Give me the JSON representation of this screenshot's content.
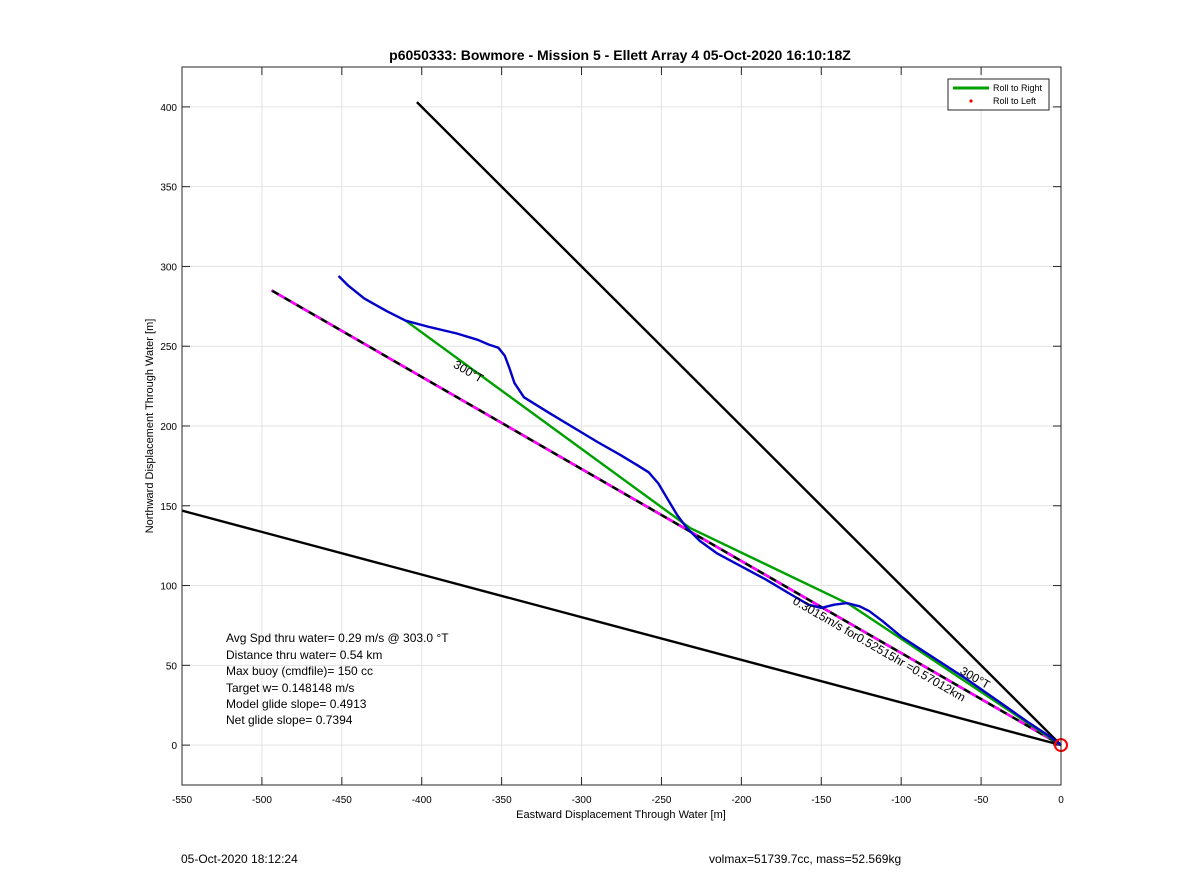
{
  "chart_data": {
    "type": "line",
    "title": "p6050333: Bowmore - Mission 5 - Ellett Array 4 05-Oct-2020 16:10:18Z",
    "xlabel": "Eastward Displacement Through Water [m]",
    "ylabel": "Northward Displacement Through Water [m]",
    "xlim": [
      -550,
      0
    ],
    "ylim": [
      -25,
      425
    ],
    "xticks": [
      -550,
      -500,
      -450,
      -400,
      -350,
      -300,
      -250,
      -200,
      -150,
      -100,
      -50,
      0
    ],
    "yticks": [
      0,
      50,
      100,
      150,
      200,
      250,
      300,
      350,
      400
    ],
    "grid": true,
    "legend_position": "top-right",
    "legend": [
      {
        "label": "Roll to Right",
        "color": "#00a000",
        "style": "line"
      },
      {
        "label": "Roll to Left",
        "color": "#ff0000",
        "style": "dot"
      }
    ],
    "series": [
      {
        "name": "Roll to Right",
        "color": "#00a000",
        "x": [
          0,
          -132,
          -232,
          -410
        ],
        "y": [
          0,
          88,
          136,
          266
        ]
      },
      {
        "color": "#0000c8",
        "x": [
          0,
          -8,
          -20,
          -40,
          -60,
          -80,
          -100,
          -112,
          -120,
          -126,
          -134,
          -142,
          -150,
          -158,
          -170,
          -185,
          -200,
          -215,
          -226,
          -234,
          -240,
          -246,
          -252,
          -258,
          -266,
          -276,
          -290,
          -305,
          -320,
          -336,
          -342,
          -345,
          -348,
          -352,
          -358,
          -365,
          -378,
          -395,
          -410,
          -422,
          -436,
          -446,
          -452
        ],
        "y": [
          0,
          6,
          14,
          28,
          42,
          55,
          68,
          78,
          84,
          87,
          89,
          88,
          86,
          88,
          95,
          104,
          112,
          120,
          128,
          136,
          144,
          154,
          164,
          171,
          176,
          182,
          190,
          199,
          208,
          218,
          227,
          236,
          244,
          249,
          251,
          254,
          258,
          262,
          266,
          272,
          280,
          288,
          294
        ]
      },
      {
        "color": "#000000",
        "style": "dashed-magenta",
        "x": [
          0,
          -494
        ],
        "y": [
          0,
          285
        ]
      },
      {
        "color": "#000000",
        "x": [
          0,
          -403
        ],
        "y": [
          0,
          403
        ]
      },
      {
        "color": "#000000",
        "x": [
          0,
          -550
        ],
        "y": [
          0,
          147
        ]
      }
    ],
    "origin_marker": {
      "x": 0,
      "y": 0,
      "color": "#ff0000"
    },
    "annotations": [
      {
        "text": "300°T",
        "x": -372,
        "y": 232,
        "angle": 30
      },
      {
        "text": "300°T",
        "x": -55,
        "y": 40,
        "angle": 30
      },
      {
        "text": "0.3015m/s for0.52515hr =0.57012km",
        "x": -115,
        "y": 58,
        "angle": 30
      }
    ],
    "info_lines": [
      "Avg Spd thru water=  0.29 m/s @ 303.0 °T",
      "Distance thru water=  0.54 km",
      "Max buoy (cmdfile)= 150 cc",
      "Target w= 0.148148 m/s",
      "Model glide slope= 0.4913",
      "Net glide slope= 0.7394"
    ]
  },
  "footer": {
    "printed_date": "05-Oct-2020 18:12:24",
    "vol_mass": "volmax=51739.7cc, mass=52.569kg"
  }
}
